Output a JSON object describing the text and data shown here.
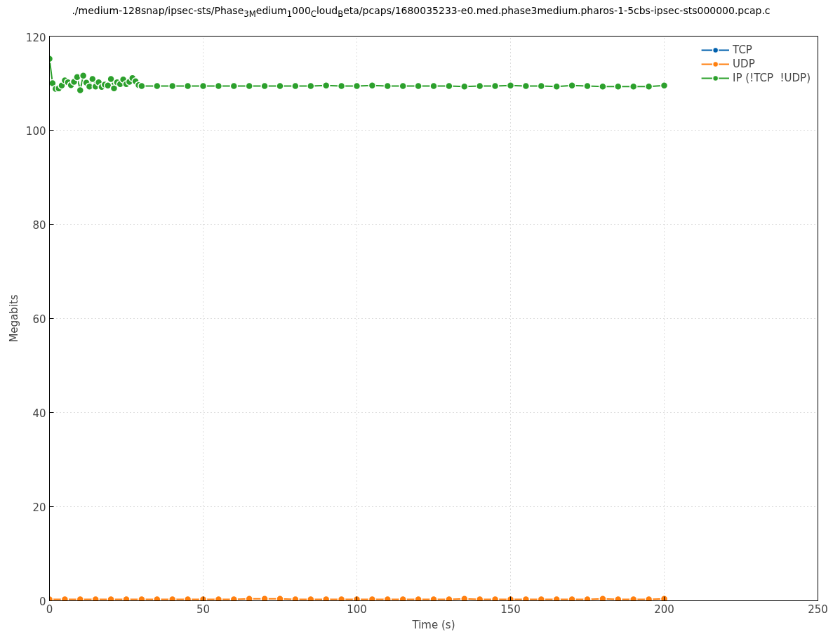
{
  "chart_data": {
    "type": "line",
    "title": "./medium-128snap/ipsec-sts/Phase$_{3M}$edium$_{1}$000$_{C}$loud$_{B}$eta/pcaps/1680035233-e0.med.phase3medium.pharos-1-5cbs-ipsec-sts000000.pcap.c",
    "xlabel": "Time (s)",
    "ylabel": "Megabits",
    "xlim": [
      0,
      250
    ],
    "xticks": [
      0,
      50,
      100,
      150,
      200,
      250
    ],
    "ylim": [
      0,
      120
    ],
    "yticks": [
      0,
      20,
      40,
      60,
      80,
      100,
      120
    ],
    "grid": true,
    "legend": "top right",
    "marker": "circle",
    "line_style": "solid",
    "series": [
      {
        "name": "TCP",
        "color": "#0060ad"
      },
      {
        "name": "UDP",
        "color": "#ff7f0e",
        "x": [
          0,
          5,
          10,
          15,
          20,
          25,
          30,
          35,
          40,
          45,
          50,
          55,
          60,
          65,
          70,
          75,
          80,
          85,
          90,
          95,
          100,
          105,
          110,
          115,
          120,
          125,
          130,
          135,
          140,
          145,
          150,
          155,
          160,
          165,
          170,
          175,
          180,
          185,
          190,
          195,
          200
        ],
        "values": [
          0.3,
          0.3,
          0.3,
          0.3,
          0.3,
          0.3,
          0.3,
          0.3,
          0.3,
          0.3,
          0.3,
          0.3,
          0.3,
          0.4,
          0.4,
          0.4,
          0.3,
          0.3,
          0.3,
          0.3,
          0.3,
          0.3,
          0.3,
          0.3,
          0.3,
          0.3,
          0.3,
          0.4,
          0.3,
          0.3,
          0.3,
          0.3,
          0.3,
          0.3,
          0.3,
          0.3,
          0.4,
          0.3,
          0.3,
          0.3,
          0.4
        ]
      },
      {
        "name": "IP (!TCP  !UDP)",
        "color": "#2ca02c",
        "x": [
          0,
          1,
          2,
          3,
          4,
          5,
          6,
          7,
          8,
          9,
          10,
          11,
          12,
          13,
          14,
          15,
          16,
          17,
          18,
          19,
          20,
          21,
          22,
          23,
          24,
          25,
          26,
          27,
          28,
          29,
          30,
          35,
          40,
          45,
          50,
          55,
          60,
          65,
          70,
          75,
          80,
          85,
          90,
          95,
          100,
          105,
          110,
          115,
          120,
          125,
          130,
          135,
          140,
          145,
          150,
          155,
          160,
          165,
          170,
          175,
          180,
          185,
          190,
          195,
          200
        ],
        "values": [
          115.2,
          110,
          108.8,
          108.9,
          109.5,
          110.6,
          110.2,
          109.6,
          110.3,
          111.3,
          108.5,
          111.6,
          110.1,
          109.3,
          110.9,
          109.3,
          110.2,
          109.2,
          109.7,
          109.5,
          110.9,
          108.9,
          110.2,
          109.8,
          110.8,
          109.8,
          110.3,
          111.1,
          110.4,
          109.6,
          109.4,
          109.4,
          109.4,
          109.4,
          109.4,
          109.4,
          109.4,
          109.4,
          109.4,
          109.4,
          109.4,
          109.4,
          109.5,
          109.4,
          109.4,
          109.5,
          109.4,
          109.4,
          109.4,
          109.4,
          109.4,
          109.3,
          109.4,
          109.4,
          109.5,
          109.4,
          109.4,
          109.3,
          109.5,
          109.4,
          109.3,
          109.3,
          109.3,
          109.3,
          109.5
        ]
      }
    ]
  }
}
